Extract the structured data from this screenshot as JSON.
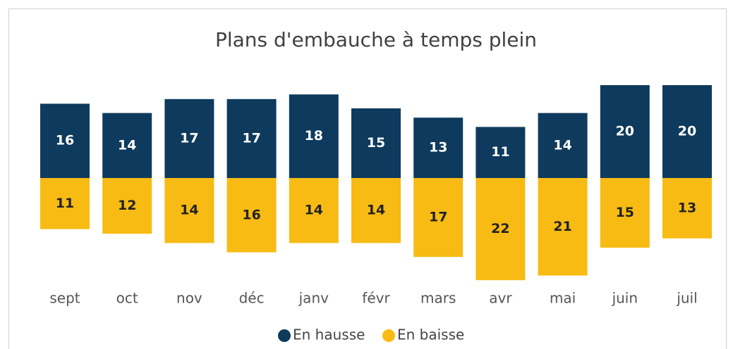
{
  "chart_data": {
    "type": "diverging-bar",
    "title": "Plans d'embauche à temps plein",
    "categories": [
      "sept",
      "oct",
      "nov",
      "déc",
      "janv",
      "févr",
      "mars",
      "avr",
      "mai",
      "juin",
      "juil"
    ],
    "series": [
      {
        "name": "En hausse",
        "color": "#0e3a5d",
        "values": [
          16,
          14,
          17,
          17,
          18,
          15,
          13,
          11,
          14,
          20,
          20
        ]
      },
      {
        "name": "En baisse",
        "color": "#f8bb14",
        "values": [
          11,
          12,
          14,
          16,
          14,
          14,
          17,
          22,
          21,
          15,
          13
        ]
      }
    ]
  }
}
